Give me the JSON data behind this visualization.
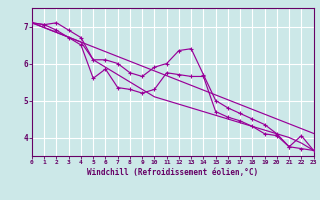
{
  "hours": [
    0,
    1,
    2,
    3,
    4,
    5,
    6,
    7,
    8,
    9,
    10,
    11,
    12,
    13,
    14,
    15,
    16,
    17,
    18,
    19,
    20,
    21,
    22,
    23
  ],
  "series": {
    "upper": [
      7.1,
      7.05,
      7.1,
      6.9,
      6.7,
      6.1,
      6.1,
      6.0,
      5.75,
      5.65,
      5.9,
      6.0,
      6.35,
      6.4,
      5.7,
      5.0,
      4.8,
      4.65,
      4.5,
      4.35,
      4.1,
      3.75,
      4.05,
      3.65
    ],
    "lower": [
      7.1,
      7.05,
      6.9,
      6.7,
      6.5,
      5.6,
      5.85,
      5.35,
      5.3,
      5.2,
      5.3,
      5.75,
      5.7,
      5.65,
      5.65,
      4.7,
      4.55,
      4.45,
      4.3,
      4.1,
      4.05,
      3.75,
      3.7,
      3.65
    ],
    "trend1": [
      7.1,
      6.97,
      6.84,
      6.71,
      6.58,
      6.1,
      5.9,
      5.7,
      5.5,
      5.3,
      5.1,
      5.0,
      4.9,
      4.8,
      4.7,
      4.6,
      4.5,
      4.4,
      4.3,
      4.2,
      4.1,
      4.0,
      3.85,
      3.65
    ],
    "trend2": [
      7.1,
      6.97,
      6.84,
      6.71,
      6.58,
      6.45,
      6.32,
      6.19,
      6.06,
      5.93,
      5.8,
      5.67,
      5.54,
      5.41,
      5.28,
      5.15,
      5.02,
      4.89,
      4.76,
      4.63,
      4.5,
      4.37,
      4.24,
      4.11
    ]
  },
  "xlabel": "Windchill (Refroidissement éolien,°C)",
  "ylim": [
    3.5,
    7.5
  ],
  "xlim": [
    0,
    23
  ],
  "yticks": [
    4,
    5,
    6,
    7
  ],
  "xticks": [
    0,
    1,
    2,
    3,
    4,
    5,
    6,
    7,
    8,
    9,
    10,
    11,
    12,
    13,
    14,
    15,
    16,
    17,
    18,
    19,
    20,
    21,
    22,
    23
  ],
  "line_color": "#990099",
  "bg_color": "#cce8e8",
  "grid_color": "#ffffff",
  "axis_color": "#660066",
  "tick_label_color": "#660066"
}
